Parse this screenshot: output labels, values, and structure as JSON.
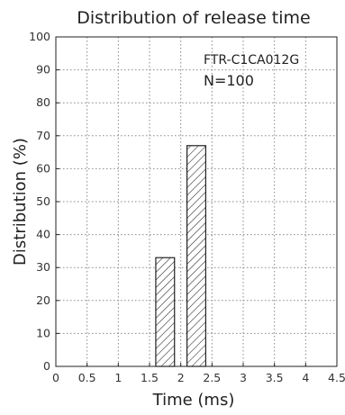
{
  "chart_data": {
    "type": "bar",
    "title": "Distribution of release time",
    "xlabel": "Time (ms)",
    "ylabel": "Distribution (%)",
    "xlim": [
      0,
      4.5
    ],
    "ylim": [
      0,
      100
    ],
    "x_ticks": [
      "0",
      "0.5",
      "1",
      "1.5",
      "2",
      "2.5",
      "3",
      "3.5",
      "4",
      "4.5"
    ],
    "y_ticks": [
      "0",
      "10",
      "20",
      "30",
      "40",
      "50",
      "60",
      "70",
      "80",
      "90",
      "100"
    ],
    "grid": true,
    "bars": [
      {
        "x_start": 1.6,
        "x_end": 1.9,
        "value": 33
      },
      {
        "x_start": 2.1,
        "x_end": 2.4,
        "value": 67
      }
    ],
    "annotations": [
      "FTR-C1CA012G",
      "N=100"
    ],
    "bar_fill": "hatched",
    "bar_color": "#222222"
  }
}
